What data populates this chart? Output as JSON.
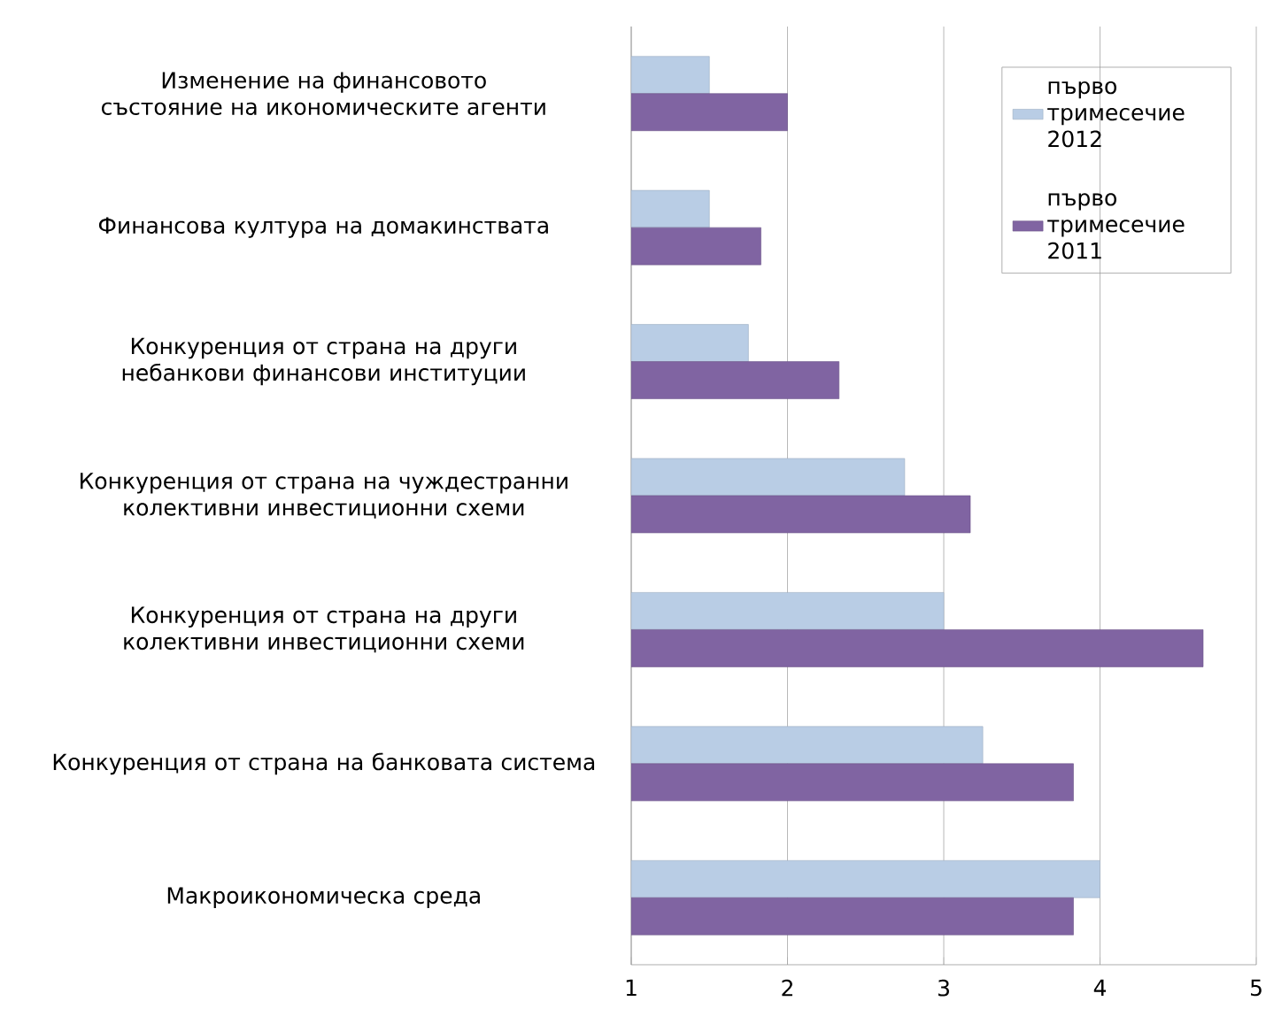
{
  "chart_data": {
    "type": "bar",
    "orientation": "horizontal",
    "categories": [
      "Изменение на финансовото състояние на икономическите агенти",
      "Финансова култура на домакинствата",
      "Конкуренция от страна на други небанкови финансови институции",
      "Конкуренция от страна на чуждестранни колективни инвестиционни схеми",
      "Конкуренция от страна на други колективни инвестиционни схеми",
      "Конкуренция от страна на банковата система",
      "Макроикономическа среда"
    ],
    "series": [
      {
        "name": "първо тримесечие 2012",
        "color": "#b9cde5",
        "values": [
          1.5,
          1.5,
          1.75,
          2.75,
          3.0,
          3.25,
          4.0
        ]
      },
      {
        "name": "първо тримесечие 2011",
        "color": "#8064a2",
        "values": [
          2.0,
          1.83,
          2.33,
          3.17,
          4.66,
          3.83,
          3.83
        ]
      }
    ],
    "xlim": [
      1,
      5
    ],
    "xticks": [
      1,
      2,
      3,
      4,
      5
    ],
    "grid": "x",
    "legend": "top right"
  }
}
